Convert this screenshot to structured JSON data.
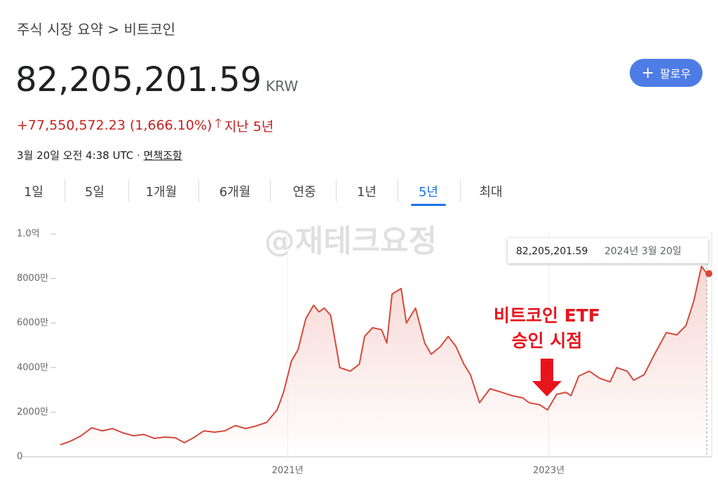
{
  "header": {
    "breadcrumb": "주식 시장 요약 > 비트코인",
    "price": "82,205,201.59",
    "currency": "KRW",
    "change": "+77,550,572.23 (1,666.10%)",
    "period": "지난 5년",
    "timestamp": "3월 20일 오전 4:38 UTC · ",
    "disclaimer": "면책조항",
    "follow": "팔로우"
  },
  "tabs": {
    "items": [
      "1일",
      "5일",
      "1개월",
      "6개월",
      "연중",
      "1년",
      "5년",
      "최대"
    ],
    "selected": 6
  },
  "watermark": "@재테크요정",
  "chart_data": {
    "type": "line",
    "x": [
      2019.26,
      2019.34,
      2019.42,
      2019.5,
      2019.58,
      2019.66,
      2019.74,
      2019.82,
      2019.9,
      2019.98,
      2020.06,
      2020.14,
      2020.21,
      2020.28,
      2020.36,
      2020.44,
      2020.52,
      2020.6,
      2020.68,
      2020.76,
      2020.84,
      2020.92,
      2020.97,
      2021.03,
      2021.08,
      2021.14,
      2021.2,
      2021.24,
      2021.28,
      2021.33,
      2021.4,
      2021.48,
      2021.55,
      2021.59,
      2021.65,
      2021.72,
      2021.76,
      2021.8,
      2021.87,
      2021.91,
      2021.98,
      2022.05,
      2022.1,
      2022.17,
      2022.23,
      2022.29,
      2022.35,
      2022.4,
      2022.47,
      2022.55,
      2022.64,
      2022.72,
      2022.8,
      2022.85,
      2022.93,
      2022.99,
      2023.06,
      2023.13,
      2023.17,
      2023.23,
      2023.31,
      2023.39,
      2023.47,
      2023.52,
      2023.6,
      2023.65,
      2023.73,
      2023.81,
      2023.9,
      2023.98,
      2024.05,
      2024.11,
      2024.17,
      2024.21
    ],
    "series": [
      {
        "color": "#d6493a",
        "values": [
          5300000,
          7000000,
          9400000,
          13000000,
          11600000,
          12600000,
          10700000,
          9400000,
          10000000,
          8200000,
          8800000,
          8500000,
          6300000,
          8500000,
          11600000,
          11000000,
          11600000,
          14000000,
          12600000,
          13800000,
          15400000,
          21000000,
          29000000,
          43000000,
          48000000,
          62000000,
          68000000,
          65000000,
          66700000,
          63500000,
          40000000,
          38400000,
          41500000,
          54000000,
          57900000,
          57000000,
          51000000,
          73000000,
          75500000,
          60000000,
          66700000,
          51000000,
          46000000,
          49400000,
          54000000,
          49400000,
          41500000,
          36800000,
          24200000,
          30500000,
          28900000,
          27400000,
          26400000,
          24200000,
          23300000,
          21000000,
          28000000,
          28900000,
          27400000,
          36200000,
          38400000,
          35200000,
          33600000,
          40000000,
          38400000,
          34300000,
          36800000,
          46000000,
          55700000,
          54700000,
          58800000,
          69800000,
          85500000,
          82205201.59
        ]
      }
    ],
    "xlim": [
      2019.26,
      2024.21
    ],
    "ylim": [
      0,
      100000000
    ],
    "xticks": [
      {
        "value": 2021,
        "label": "2021년"
      },
      {
        "value": 2023,
        "label": "2023년"
      }
    ],
    "yticks": [
      0,
      {
        "value": 20000000,
        "label": "2000만"
      },
      {
        "value": 40000000,
        "label": "4000만"
      },
      {
        "value": 60000000,
        "label": "6000만"
      },
      {
        "value": 80000000,
        "label": "8000만"
      },
      {
        "value": 100000000,
        "label": "1.0억"
      }
    ],
    "grid": false,
    "annotation": [
      "비트코인 ETF",
      "승인 시점"
    ],
    "tooltip": {
      "label": "82,205,201.59",
      "date": "2024년 3월 20일"
    }
  }
}
